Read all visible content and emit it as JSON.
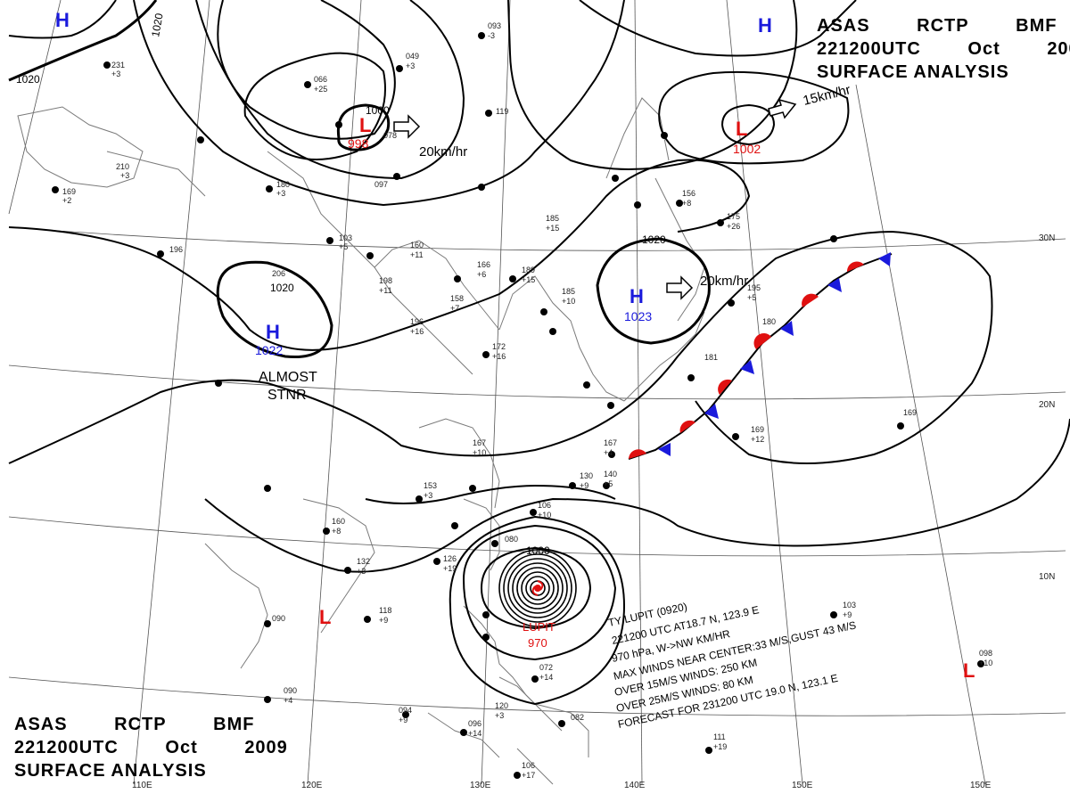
{
  "header": {
    "line1": [
      "ASAS",
      "RCTP",
      "BMF"
    ],
    "line2": [
      "221200UTC",
      "Oct",
      "2009"
    ],
    "line3": "SURFACE ANALYSIS"
  },
  "colors": {
    "high": "#1a1adc",
    "low": "#e01010",
    "isobar": "#000000",
    "coast": "#7a7a7a",
    "grid": "#555555"
  },
  "lon_labels": [
    "110E",
    "120E",
    "130E",
    "140E",
    "150E"
  ],
  "lat_labels": [
    "30N",
    "20N",
    "10N"
  ],
  "isobar_labels": [
    "1020",
    "1020",
    "1020",
    "1020",
    "1000",
    "1000"
  ],
  "pressure_centers": [
    {
      "type": "H",
      "value": ""
    },
    {
      "type": "L",
      "value": "998"
    },
    {
      "type": "H",
      "value": ""
    },
    {
      "type": "L",
      "value": "1002"
    },
    {
      "type": "H",
      "value": "1022"
    },
    {
      "type": "H",
      "value": "1023"
    },
    {
      "type": "L",
      "value": ""
    },
    {
      "type": "L",
      "value": ""
    }
  ],
  "motions": [
    "20km/hr",
    "15km/hr",
    "20km/hr"
  ],
  "almost_stnr": [
    "ALMOST",
    "STNR"
  ],
  "typhoon": {
    "name": "LUPIT",
    "pressure": "970",
    "info": [
      "TY  LUPIT  (0920)",
      "221200 UTC  AT18.7 N, 123.9 E",
      "970 hPa, W->NW   KM/HR",
      "MAX WINDS NEAR CENTER:33 M/S,GUST 43 M/S",
      "OVER 15M/S WINDS: 250 KM",
      "OVER 25M/S WINDS: 80 KM",
      "FORECAST FOR 231200 UTC 19.0 N, 123.1 E"
    ]
  },
  "stations": [
    [
      "093",
      "-3"
    ],
    [
      "049",
      "+3"
    ],
    [
      "066",
      "+25"
    ],
    [
      "119",
      ""
    ],
    [
      "078",
      ""
    ],
    [
      "097",
      ""
    ],
    [
      "210",
      "+3"
    ],
    [
      "169",
      "+2"
    ],
    [
      "180",
      "+3"
    ],
    [
      "103",
      "+5"
    ],
    [
      "196",
      ""
    ],
    [
      "206",
      ""
    ],
    [
      "160",
      "+11"
    ],
    [
      "198",
      "+11"
    ],
    [
      "158",
      "+7"
    ],
    [
      "196",
      "+16"
    ],
    [
      "166",
      "+6"
    ],
    [
      "189",
      "+15"
    ],
    [
      "185",
      "+15"
    ],
    [
      "185",
      "+10"
    ],
    [
      "172",
      "+16"
    ],
    [
      "167",
      "+10"
    ],
    [
      "153",
      "+3"
    ],
    [
      "160",
      "+8"
    ],
    [
      "132",
      "+3"
    ],
    [
      "126",
      "+19"
    ],
    [
      "118",
      "+9"
    ],
    [
      "090",
      ""
    ],
    [
      "090",
      "+4"
    ],
    [
      "094",
      "+9"
    ],
    [
      "096",
      "+14"
    ],
    [
      "106",
      "+17"
    ],
    [
      "072",
      "+14"
    ],
    [
      "080",
      ""
    ],
    [
      "106",
      "+10"
    ],
    [
      "130",
      "+9"
    ],
    [
      "140",
      "+5"
    ],
    [
      "167",
      "+4"
    ],
    [
      "156",
      "+8"
    ],
    [
      "175",
      "+26"
    ],
    [
      "195",
      "+5"
    ],
    [
      "180",
      ""
    ],
    [
      "181",
      ""
    ],
    [
      "169",
      "+12"
    ],
    [
      "169",
      ""
    ],
    [
      "103",
      "+9"
    ],
    [
      "098",
      "+10"
    ],
    [
      "111",
      "+19"
    ],
    [
      "082",
      ""
    ],
    [
      "120",
      "+3"
    ],
    [
      "231",
      "+3"
    ]
  ]
}
